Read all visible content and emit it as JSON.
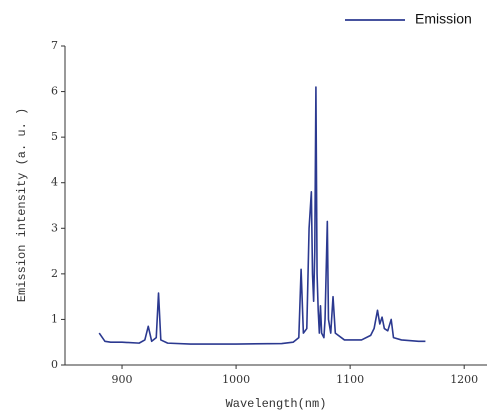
{
  "chart_data": {
    "type": "line",
    "xlabel": "Wavelength(nm)",
    "ylabel": "Emission intensity (a. u. )",
    "x": [
      880,
      885,
      890,
      900,
      915,
      920,
      923,
      926,
      930,
      932,
      934,
      940,
      960,
      1000,
      1040,
      1050,
      1055,
      1057,
      1059,
      1062,
      1064,
      1066,
      1067,
      1068,
      1069,
      1070,
      1071,
      1072,
      1073,
      1074,
      1075,
      1077,
      1078,
      1080,
      1081,
      1083,
      1085,
      1087,
      1095,
      1110,
      1118,
      1121,
      1124,
      1126,
      1128,
      1130,
      1133,
      1136,
      1138,
      1145,
      1160,
      1166
    ],
    "series": [
      {
        "name": "Emission",
        "color": "#2b3990",
        "values": [
          0.7,
          0.52,
          0.5,
          0.5,
          0.48,
          0.55,
          0.85,
          0.52,
          0.6,
          1.58,
          0.55,
          0.48,
          0.46,
          0.46,
          0.47,
          0.5,
          0.6,
          2.1,
          0.7,
          0.8,
          3.0,
          3.8,
          2.0,
          1.4,
          2.5,
          6.1,
          2.0,
          1.2,
          0.7,
          1.3,
          0.7,
          0.6,
          1.0,
          3.15,
          1.0,
          0.7,
          1.5,
          0.7,
          0.55,
          0.55,
          0.65,
          0.8,
          1.2,
          0.9,
          1.05,
          0.8,
          0.75,
          1.0,
          0.6,
          0.55,
          0.52,
          0.52
        ]
      }
    ],
    "xlim": [
      850,
      1220
    ],
    "xticks": [
      900,
      1000,
      1100,
      1200
    ],
    "ylim": [
      0,
      7
    ],
    "yticks": [
      0,
      1,
      2,
      3,
      4,
      5,
      6,
      7
    ],
    "legend": "top-right"
  }
}
